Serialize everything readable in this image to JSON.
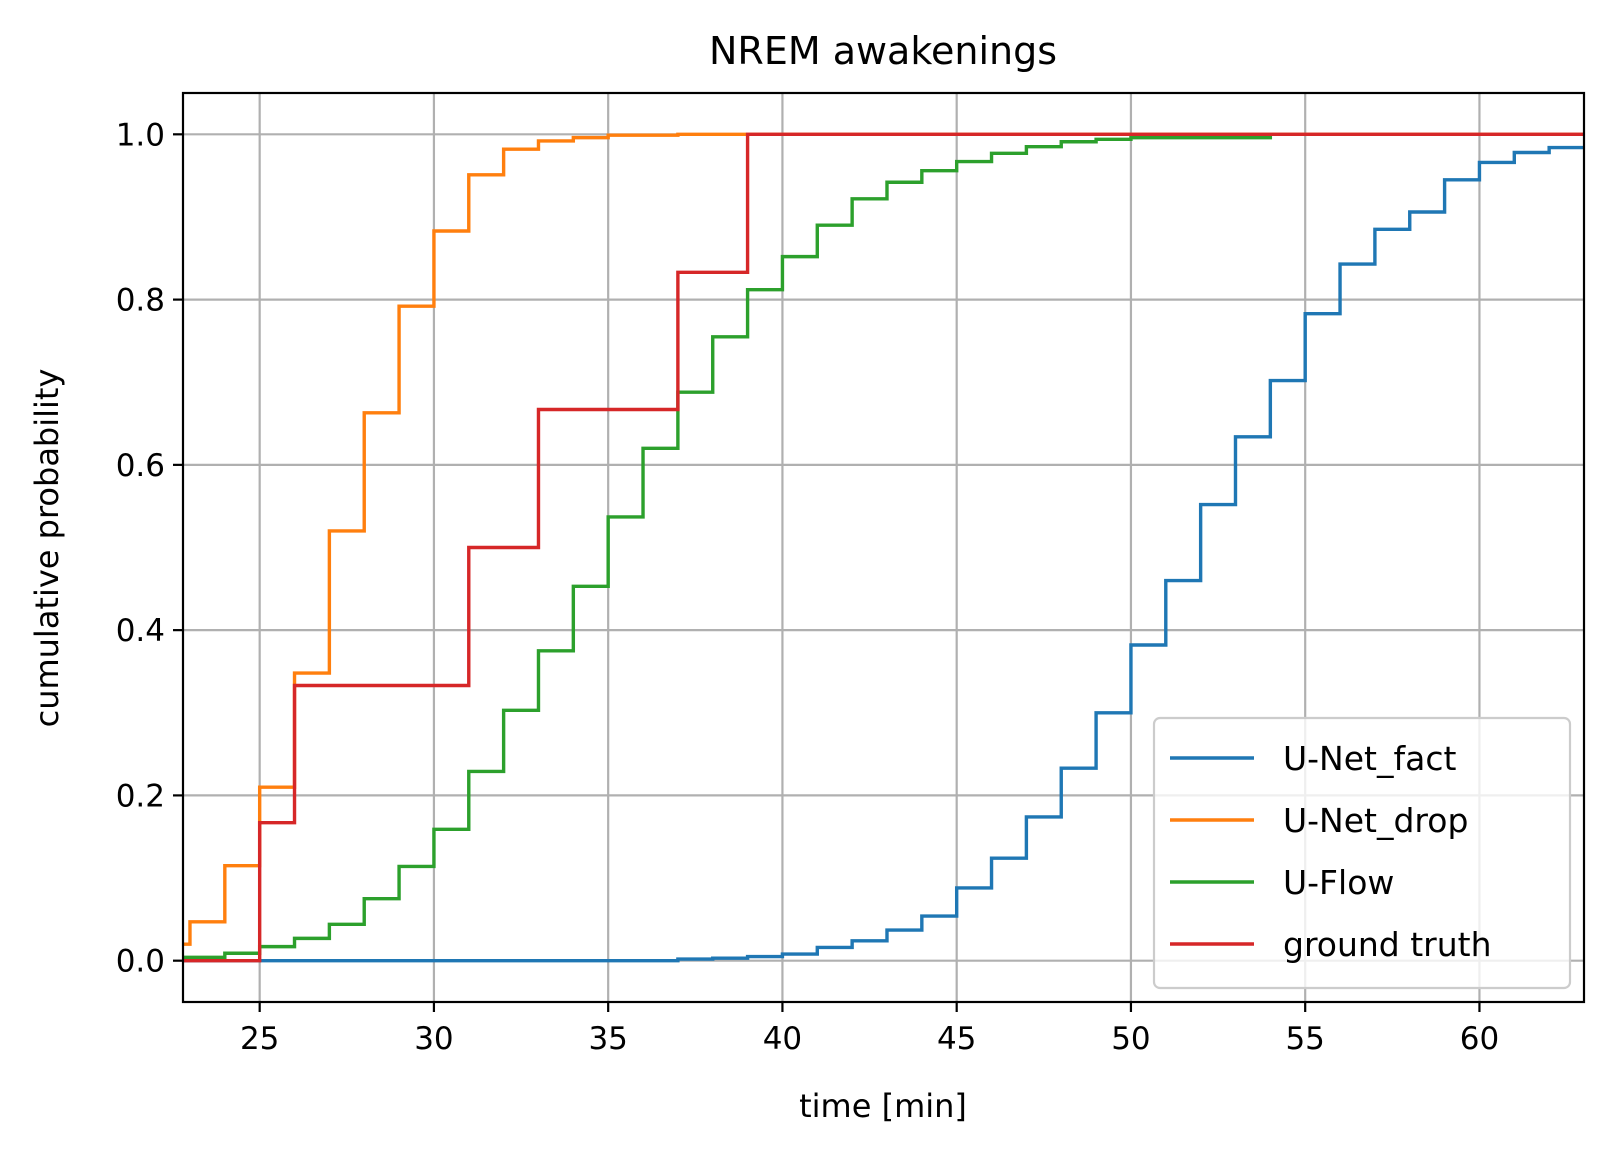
{
  "chart_data": {
    "type": "line",
    "step": "post",
    "title": "NREM awakenings",
    "xlabel": "time [min]",
    "ylabel": "cumulative probability",
    "xlim": [
      22.8,
      63
    ],
    "ylim": [
      -0.05,
      1.05
    ],
    "xticks": [
      25,
      30,
      35,
      40,
      45,
      50,
      55,
      60
    ],
    "yticks": [
      0.0,
      0.2,
      0.4,
      0.6,
      0.8,
      1.0
    ],
    "xtick_labels": [
      "25",
      "30",
      "35",
      "40",
      "45",
      "50",
      "55",
      "60"
    ],
    "ytick_labels": [
      "0.0",
      "0.2",
      "0.4",
      "0.6",
      "0.8",
      "1.0"
    ],
    "grid": true,
    "legend_position": "lower-right",
    "series": [
      {
        "name": "U-Net_fact",
        "color": "#1f77b4",
        "x": [
          22.8,
          35,
          37,
          38,
          39,
          40,
          41,
          42,
          43,
          44,
          45,
          46,
          47,
          48,
          49,
          50,
          51,
          52,
          53,
          54,
          55,
          56,
          57,
          58,
          59,
          60,
          61,
          62,
          63
        ],
        "y": [
          0.0,
          0.0,
          0.002,
          0.003,
          0.005,
          0.008,
          0.016,
          0.024,
          0.037,
          0.054,
          0.088,
          0.124,
          0.174,
          0.233,
          0.3,
          0.382,
          0.46,
          0.552,
          0.634,
          0.702,
          0.783,
          0.843,
          0.885,
          0.906,
          0.945,
          0.966,
          0.978,
          0.984,
          0.984
        ]
      },
      {
        "name": "U-Net_drop",
        "color": "#ff7f0e",
        "x": [
          22.8,
          23,
          24,
          25,
          26,
          27,
          28,
          29,
          30,
          31,
          32,
          33,
          34,
          35,
          37,
          39,
          63
        ],
        "y": [
          0.02,
          0.047,
          0.115,
          0.21,
          0.348,
          0.52,
          0.663,
          0.792,
          0.883,
          0.951,
          0.982,
          0.992,
          0.996,
          0.999,
          1.0,
          1.0,
          1.0
        ]
      },
      {
        "name": "U-Flow",
        "color": "#2ca02c",
        "x": [
          22.8,
          24,
          25,
          26,
          27,
          28,
          29,
          30,
          31,
          32,
          33,
          34,
          35,
          36,
          37,
          38,
          39,
          40,
          41,
          42,
          43,
          44,
          45,
          46,
          47,
          48,
          49,
          50,
          54
        ],
        "y": [
          0.004,
          0.009,
          0.017,
          0.027,
          0.044,
          0.075,
          0.114,
          0.159,
          0.229,
          0.303,
          0.375,
          0.453,
          0.537,
          0.62,
          0.688,
          0.755,
          0.812,
          0.852,
          0.89,
          0.922,
          0.942,
          0.956,
          0.967,
          0.977,
          0.985,
          0.991,
          0.994,
          0.996,
          0.998
        ]
      },
      {
        "name": "ground truth",
        "color": "#d62728",
        "x": [
          22.8,
          25,
          26,
          31,
          33,
          37,
          39,
          63
        ],
        "y": [
          0.0,
          0.167,
          0.333,
          0.5,
          0.667,
          0.833,
          1.0,
          1.0
        ]
      }
    ]
  }
}
